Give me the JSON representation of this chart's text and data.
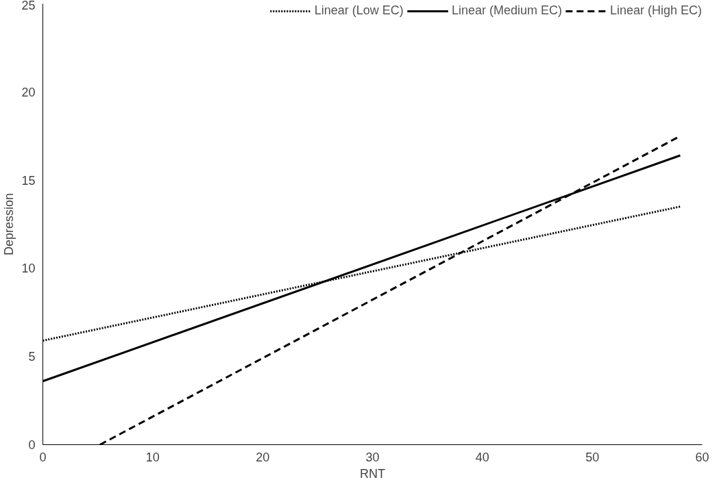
{
  "chart_data": {
    "type": "line",
    "xlabel": "RNT",
    "ylabel": "Depression",
    "xlim": [
      0,
      60
    ],
    "ylim": [
      0,
      25
    ],
    "xticks": [
      0,
      10,
      20,
      30,
      40,
      50,
      60
    ],
    "yticks": [
      0,
      5,
      10,
      15,
      20,
      25
    ],
    "grid": false,
    "legend": "top",
    "marker": "none",
    "series": [
      {
        "name": "Linear (Low EC)",
        "color": "#000000",
        "line_style": "dotted",
        "x": [
          0,
          58
        ],
        "values": [
          5.9,
          13.5
        ]
      },
      {
        "name": "Linear (Medium EC)",
        "color": "#000000",
        "line_style": "solid",
        "x": [
          0,
          58
        ],
        "values": [
          3.6,
          16.4
        ]
      },
      {
        "name": "Linear (High EC)",
        "color": "#000000",
        "line_style": "dashed",
        "x": [
          5.2,
          58
        ],
        "values": [
          0,
          17.5
        ]
      }
    ]
  }
}
